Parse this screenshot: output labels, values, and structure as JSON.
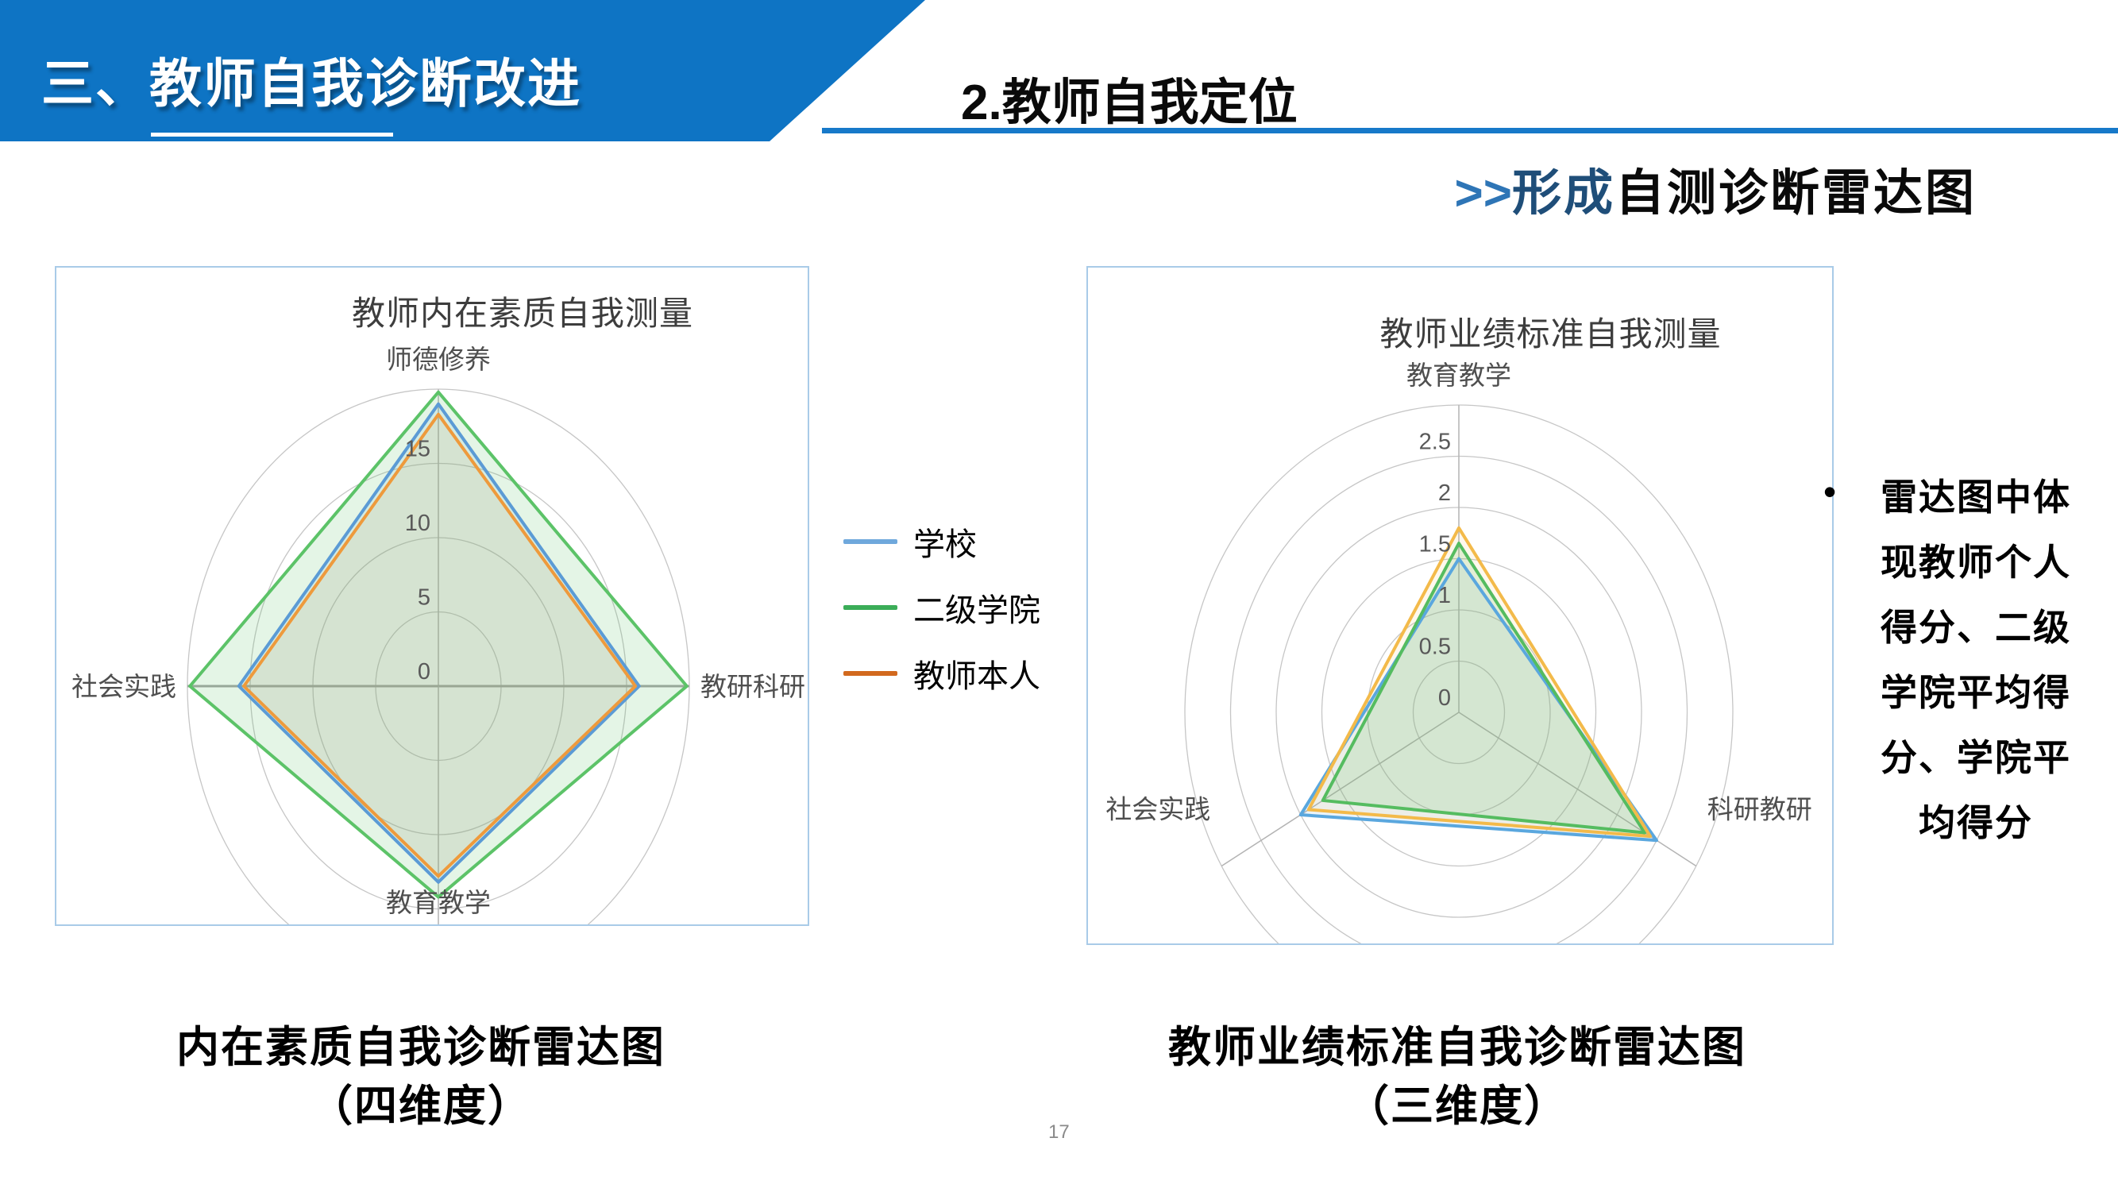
{
  "header": {
    "banner_title": "三、教师自我诊断改进",
    "section_title": "2.教师自我定位",
    "headline": {
      "arrows": ">>",
      "highlight": "形成",
      "rest": "自测诊断雷达图"
    }
  },
  "legend": {
    "items": [
      {
        "label": "学校",
        "color": "#6FA8DC"
      },
      {
        "label": "二级学院",
        "color": "#3BAD58"
      },
      {
        "label": "教师本人",
        "color": "#D2691E"
      }
    ]
  },
  "side_note": {
    "bullet": "•",
    "text": "雷达图中体现教师个人得分、二级学院平均得分、学院平均得分"
  },
  "captions": {
    "left": {
      "line1": "内在素质自我诊断雷达图",
      "line2": "（四维度）"
    },
    "right": {
      "line1": "教师业绩标准自我诊断雷达图",
      "line2": "（三维度）"
    }
  },
  "page_number": "17",
  "colors": {
    "banner": "#0E74C4",
    "rule": "#1779C9",
    "headline_accent": "#2E75B6",
    "chart_border": "#A9CBE8"
  },
  "chart_data": [
    {
      "type": "radar",
      "title": "教师内在素质自我测量",
      "categories": [
        "师德修养",
        "教研科研",
        "教育教学",
        "社会实践"
      ],
      "angles": [
        0,
        90,
        180,
        270
      ],
      "max": 20,
      "tick_step": 5,
      "ticks": [
        0,
        5,
        10,
        15
      ],
      "grid": "circular-ellipse",
      "legend_position": "outside-right",
      "series": [
        {
          "name": "学校",
          "color": "#5B9BD5",
          "values": [
            19.0,
            16.0,
            13.2,
            15.9
          ]
        },
        {
          "name": "二级学院",
          "color": "#5CC368",
          "values": [
            19.8,
            19.8,
            14.2,
            19.8
          ]
        },
        {
          "name": "教师本人",
          "color": "#EE9A3C",
          "values": [
            18.3,
            15.7,
            12.8,
            15.5
          ]
        }
      ]
    },
    {
      "type": "radar",
      "title": "教师业绩标准自我测量",
      "categories": [
        "教育教学",
        "科研教研",
        "社会实践"
      ],
      "angles": [
        0,
        120,
        240
      ],
      "max": 3,
      "tick_step": 0.5,
      "ticks": [
        0,
        0.5,
        1,
        1.5,
        2,
        2.5
      ],
      "grid": "circular-ellipse",
      "legend_position": "none",
      "series": [
        {
          "name": "学校",
          "color": "#5AA7DE",
          "values": [
            1.5,
            2.5,
            2.0
          ]
        },
        {
          "name": "二级学院",
          "color": "#55BC60",
          "values": [
            1.65,
            2.35,
            1.72
          ]
        },
        {
          "name": "教师本人",
          "color": "#F3BA4A",
          "values": [
            1.8,
            2.42,
            1.9
          ]
        }
      ]
    }
  ]
}
